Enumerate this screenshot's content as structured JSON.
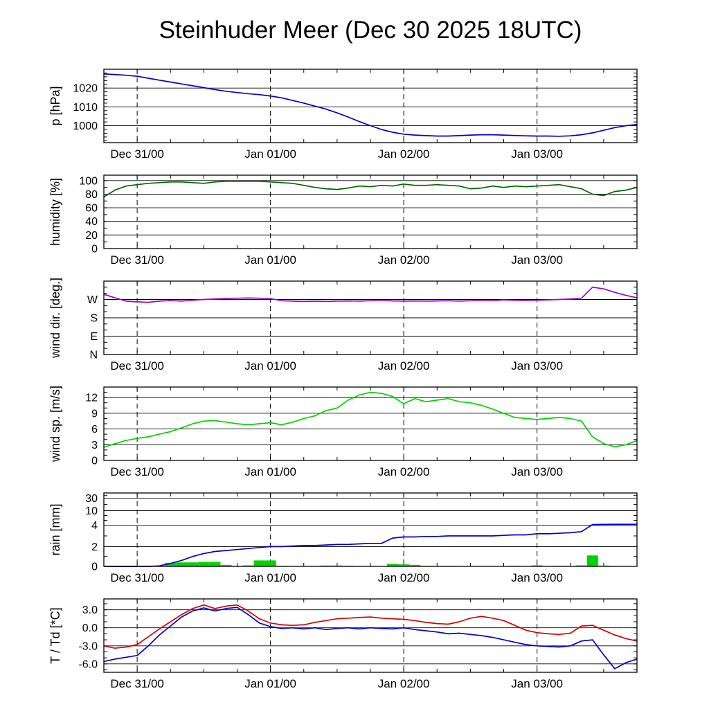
{
  "title": "Steinhuder Meer (Dec 30 2025 18UTC)",
  "x_axis": {
    "t_min": 0,
    "t_max": 96,
    "minor_step": 6,
    "day_ticks": [
      {
        "t": 6,
        "label": "Dec 31/00"
      },
      {
        "t": 30,
        "label": "Jan 01/00"
      },
      {
        "t": 54,
        "label": "Jan 02/00"
      },
      {
        "t": 78,
        "label": "Jan 03/00"
      }
    ]
  },
  "t": [
    0,
    2,
    4,
    6,
    8,
    10,
    12,
    14,
    16,
    18,
    20,
    22,
    24,
    26,
    28,
    30,
    32,
    34,
    36,
    38,
    40,
    42,
    44,
    46,
    48,
    50,
    52,
    54,
    56,
    58,
    60,
    62,
    64,
    66,
    68,
    70,
    72,
    74,
    76,
    78,
    80,
    82,
    84,
    86,
    88,
    90,
    92,
    94,
    96
  ],
  "chart_data": [
    {
      "id": "pressure",
      "type": "line",
      "ylabel": "p [hPa]",
      "ylim": [
        991,
        1030
      ],
      "yminor_step": 2,
      "yticks": [
        {
          "v": 1000,
          "label": "1000"
        },
        {
          "v": 1010,
          "label": "1010"
        },
        {
          "v": 1020,
          "label": "1020"
        }
      ],
      "series": [
        {
          "name": "pressure",
          "type": "line",
          "color": "#0000cd",
          "values": [
            1027.5,
            1027.2,
            1026.8,
            1026.3,
            1025.2,
            1024.2,
            1023.2,
            1022.2,
            1021.2,
            1020.2,
            1019.2,
            1018.3,
            1017.6,
            1017.0,
            1016.5,
            1015.8,
            1014.8,
            1013.4,
            1012.0,
            1010.4,
            1008.8,
            1006.8,
            1004.6,
            1002.2,
            1000.0,
            998.0,
            996.5,
            995.5,
            995.0,
            994.7,
            994.5,
            994.5,
            994.7,
            995.0,
            995.2,
            995.2,
            995.0,
            994.8,
            994.6,
            994.5,
            994.5,
            994.4,
            994.6,
            995.2,
            996.2,
            997.6,
            999.0,
            1000.0,
            1000.6
          ]
        }
      ]
    },
    {
      "id": "humidity",
      "type": "line",
      "ylabel": "humidity [%]",
      "ylim": [
        0,
        108
      ],
      "yminor_step": 10,
      "yticks": [
        {
          "v": 0,
          "label": "0"
        },
        {
          "v": 20,
          "label": "20"
        },
        {
          "v": 40,
          "label": "40"
        },
        {
          "v": 60,
          "label": "60"
        },
        {
          "v": 80,
          "label": "80"
        },
        {
          "v": 100,
          "label": "100"
        }
      ],
      "series": [
        {
          "name": "humidity",
          "type": "line",
          "color": "#006400",
          "values": [
            76,
            86,
            92,
            94,
            96,
            97,
            98,
            98,
            97,
            96,
            98,
            99,
            99,
            99,
            99,
            98,
            97,
            96,
            93,
            90,
            88,
            87,
            89,
            92,
            91,
            93,
            92,
            95,
            93,
            93,
            94,
            93,
            92,
            88,
            89,
            92,
            90,
            92,
            91,
            92,
            93,
            94,
            91,
            88,
            80,
            78,
            84,
            86,
            90
          ]
        }
      ]
    },
    {
      "id": "wind-direction",
      "type": "line",
      "ylabel": "wind dir. [deg.]",
      "ylim": [
        0,
        360
      ],
      "yminor_step": 30,
      "yticks": [
        {
          "v": 0,
          "label": "N"
        },
        {
          "v": 90,
          "label": "E"
        },
        {
          "v": 180,
          "label": "S"
        },
        {
          "v": 270,
          "label": "W"
        }
      ],
      "series": [
        {
          "name": "wind-direction",
          "type": "line",
          "color": "#9900cc",
          "values": [
            295,
            278,
            262,
            258,
            256,
            262,
            265,
            262,
            266,
            270,
            272,
            275,
            276,
            277,
            276,
            274,
            264,
            262,
            260,
            262,
            260,
            262,
            263,
            262,
            264,
            266,
            263,
            262,
            263,
            262,
            263,
            264,
            262,
            264,
            266,
            264,
            268,
            266,
            265,
            266,
            268,
            270,
            272,
            276,
            330,
            322,
            305,
            290,
            278
          ]
        }
      ]
    },
    {
      "id": "wind-speed",
      "type": "line",
      "ylabel": "wind sp. [m/s]",
      "ylim": [
        0,
        14
      ],
      "yminor_step": 1,
      "yticks": [
        {
          "v": 0,
          "label": "0"
        },
        {
          "v": 3,
          "label": "3"
        },
        {
          "v": 6,
          "label": "6"
        },
        {
          "v": 9,
          "label": "9"
        },
        {
          "v": 12,
          "label": "12"
        }
      ],
      "series": [
        {
          "name": "wind-speed",
          "type": "line",
          "color": "#00d300",
          "values": [
            2.5,
            3.2,
            3.8,
            4.2,
            4.5,
            5.0,
            5.5,
            6.2,
            7.0,
            7.5,
            7.6,
            7.3,
            7.0,
            6.8,
            7.0,
            7.2,
            6.8,
            7.3,
            8.0,
            8.5,
            9.5,
            10.0,
            11.5,
            12.5,
            13.0,
            12.8,
            12.2,
            10.8,
            11.8,
            11.2,
            11.5,
            11.8,
            11.2,
            11.0,
            10.5,
            9.8,
            9.0,
            8.2,
            8.0,
            7.8,
            8.0,
            8.2,
            8.0,
            7.5,
            4.5,
            3.2,
            2.6,
            3.0,
            3.8
          ]
        }
      ]
    },
    {
      "id": "rain",
      "type": "bar-line",
      "ylabel": "rain [mm]",
      "yscale": {
        "stops": [
          0,
          2,
          4,
          10,
          30,
          60
        ],
        "pos": [
          0,
          0.27,
          0.56,
          0.76,
          0.93,
          1.0
        ]
      },
      "yminor": [
        1,
        3,
        6,
        8,
        20,
        45
      ],
      "yticks": [
        {
          "v": 0,
          "label": "0"
        },
        {
          "v": 2,
          "label": "2"
        },
        {
          "v": 4,
          "label": "4"
        },
        {
          "v": 10,
          "label": "10"
        },
        {
          "v": 30,
          "label": "30"
        }
      ],
      "series": [
        {
          "name": "rain-bars",
          "type": "bar",
          "color": "#00d300",
          "values": [
            0,
            0,
            0,
            0,
            0,
            0.05,
            0.35,
            0.4,
            0.4,
            0.45,
            0.45,
            0.15,
            0.05,
            0.1,
            0.6,
            0.6,
            0.05,
            0,
            0,
            0,
            0.08,
            0.08,
            0.06,
            0,
            0,
            0,
            0.25,
            0.2,
            0.15,
            0.05,
            0,
            0.05,
            0,
            0,
            0,
            0,
            0.03,
            0.05,
            0.03,
            0.1,
            0,
            0.05,
            0.05,
            0.1,
            1.1,
            0.08,
            0,
            0,
            0
          ]
        },
        {
          "name": "rain-accumulated",
          "type": "line",
          "color": "#0000cd",
          "values": [
            0,
            0,
            0,
            0,
            0,
            0.05,
            0.3,
            0.6,
            1.0,
            1.3,
            1.5,
            1.6,
            1.7,
            1.8,
            1.9,
            2.0,
            2.0,
            2.05,
            2.1,
            2.1,
            2.15,
            2.2,
            2.2,
            2.25,
            2.3,
            2.3,
            2.8,
            2.9,
            2.9,
            2.95,
            2.95,
            3.0,
            3.0,
            3.0,
            3.0,
            3.0,
            3.05,
            3.1,
            3.1,
            3.2,
            3.2,
            3.25,
            3.3,
            3.4,
            4.3,
            4.35,
            4.4,
            4.4,
            4.4
          ]
        }
      ]
    },
    {
      "id": "temperature-dewpoint",
      "type": "line",
      "ylabel": "T / Td [*C]",
      "ylim": [
        -7.4,
        4.8
      ],
      "yminor_step": 1,
      "yticks": [
        {
          "v": -6,
          "label": "-6.0"
        },
        {
          "v": -3,
          "label": "-3.0"
        },
        {
          "v": 0,
          "label": "0.0"
        },
        {
          "v": 3,
          "label": "3.0"
        }
      ],
      "series": [
        {
          "name": "temperature",
          "type": "line",
          "color": "#d40000",
          "values": [
            -3.0,
            -3.4,
            -3.2,
            -2.8,
            -1.5,
            -0.2,
            1.0,
            2.2,
            3.2,
            3.8,
            3.2,
            3.6,
            3.8,
            2.8,
            1.5,
            0.8,
            0.5,
            0.4,
            0.5,
            0.9,
            1.2,
            1.5,
            1.6,
            1.7,
            1.8,
            1.6,
            1.5,
            1.4,
            1.2,
            0.9,
            0.7,
            0.6,
            1.0,
            1.6,
            1.9,
            1.6,
            1.2,
            0.4,
            -0.4,
            -0.8,
            -1.0,
            -1.1,
            -0.9,
            0.3,
            0.4,
            -0.4,
            -1.2,
            -1.8,
            -2.2
          ]
        },
        {
          "name": "dewpoint",
          "type": "line",
          "color": "#0000cd",
          "values": [
            -5.6,
            -5.2,
            -4.9,
            -4.6,
            -3.0,
            -1.2,
            0.3,
            1.8,
            2.8,
            3.3,
            2.8,
            3.2,
            3.4,
            2.2,
            0.8,
            0.2,
            -0.1,
            0.0,
            -0.2,
            0.0,
            -0.3,
            -0.1,
            0.0,
            -0.2,
            0.0,
            -0.1,
            -0.2,
            0.0,
            -0.3,
            -0.5,
            -0.7,
            -1.0,
            -0.9,
            -1.1,
            -1.3,
            -1.6,
            -2.0,
            -2.4,
            -2.8,
            -3.0,
            -3.1,
            -3.2,
            -3.0,
            -2.2,
            -2.0,
            -4.5,
            -6.8,
            -5.8,
            -5.2
          ]
        }
      ]
    }
  ]
}
